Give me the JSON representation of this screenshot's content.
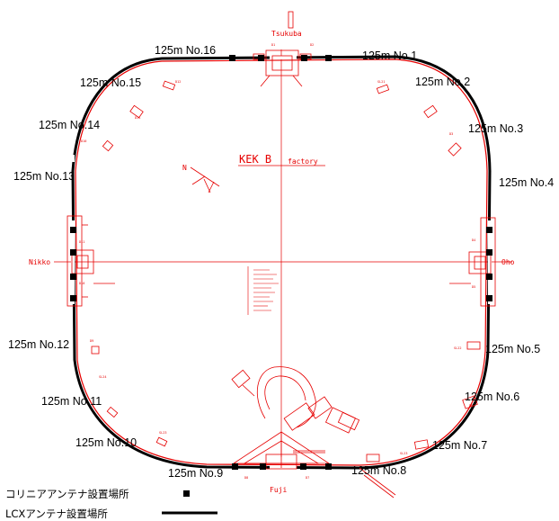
{
  "title": "KEK B",
  "title_sub": "factory",
  "stations": {
    "top": "Tsukuba",
    "bottom": "Fuji",
    "left": "Nikko",
    "right": "Oho"
  },
  "segments": [
    "125m No.1",
    "125m No.2",
    "125m No.3",
    "125m No.4",
    "125m No.5",
    "125m No.6",
    "125m No.7",
    "125m No.8",
    "125m No.9",
    "125m No.10",
    "125m No.11",
    "125m No.12",
    "125m No.13",
    "125m No.14",
    "125m No.15",
    "125m No.16"
  ],
  "legend": {
    "collinear": "コリニアアンテナ設置場所",
    "lcx": "LCXアンテナ設置場所"
  },
  "colors": {
    "ring": "#000000",
    "drawing": "#e60000"
  }
}
